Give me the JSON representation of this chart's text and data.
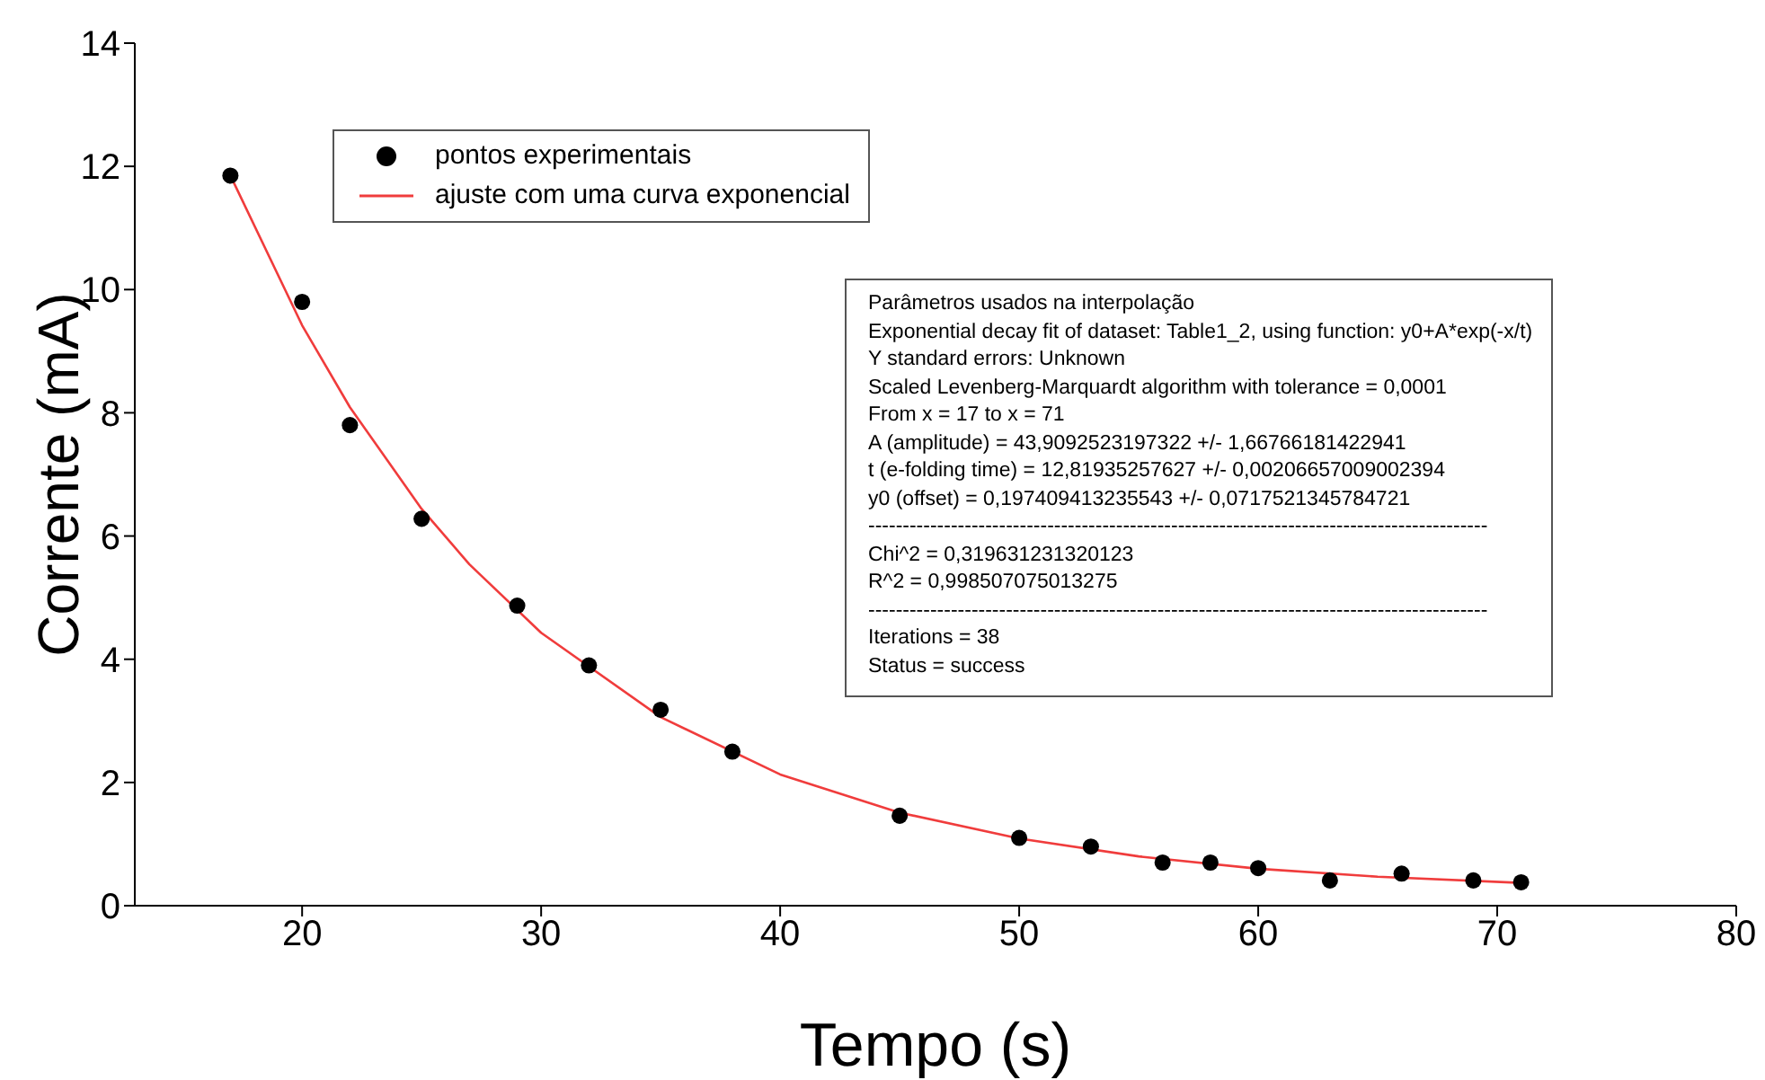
{
  "chart_data": {
    "type": "scatter",
    "xlabel": "Tempo (s)",
    "ylabel": "Corrente (mA)",
    "xlim": [
      13,
      80
    ],
    "xticks": [
      20,
      30,
      40,
      50,
      60,
      70,
      80
    ],
    "ylim": [
      0,
      14
    ],
    "yticks": [
      0,
      2,
      4,
      6,
      8,
      10,
      12,
      14
    ],
    "grid": false,
    "legend": "top left",
    "series": [
      {
        "name": "pontos experimentais",
        "marker": "circle",
        "color": "#000000",
        "x": [
          17,
          20,
          22,
          25,
          29,
          32,
          35,
          38,
          45,
          50,
          53,
          56,
          58,
          60,
          63,
          66,
          69,
          71
        ],
        "values": [
          11.85,
          9.8,
          7.8,
          6.28,
          4.87,
          3.9,
          3.18,
          2.5,
          1.46,
          1.1,
          0.96,
          0.7,
          0.7,
          0.61,
          0.41,
          0.52,
          0.41,
          0.38
        ]
      },
      {
        "name": "ajuste com uma curva exponencial",
        "type": "line",
        "marker": "none",
        "line_style": "solid",
        "color": "#f03c3c",
        "x": [
          17,
          20,
          22,
          25,
          27,
          30,
          35,
          40,
          45,
          50,
          55,
          60,
          65,
          71
        ],
        "values": [
          11.85,
          9.42,
          8.09,
          6.44,
          5.54,
          4.43,
          3.06,
          2.13,
          1.51,
          1.09,
          0.8,
          0.6,
          0.47,
          0.37
        ]
      }
    ],
    "annotations": [
      "Parâmetros usados na interpolação",
      "Exponential decay fit of dataset: Table1_2, using function: y0+A*exp(-x/t)",
      "Y standard errors: Unknown",
      "Scaled Levenberg-Marquardt algorithm with tolerance = 0,0001",
      "From x = 17 to x = 71",
      "A (amplitude) = 43,9092523197322 +/- 1,66766181422941",
      "t (e-folding time) = 12,81935257627 +/- 0,00206657009002394",
      "y0 (offset) = 0,197409413235543 +/- 0,0717521345784721",
      "------------------------------------------------------------------------------------------",
      "Chi^2 = 0,319631231320123",
      "R^2 = 0,998507075013275",
      "------------------------------------------------------------------------------------------",
      "Iterations = 38",
      "Status = success"
    ]
  }
}
